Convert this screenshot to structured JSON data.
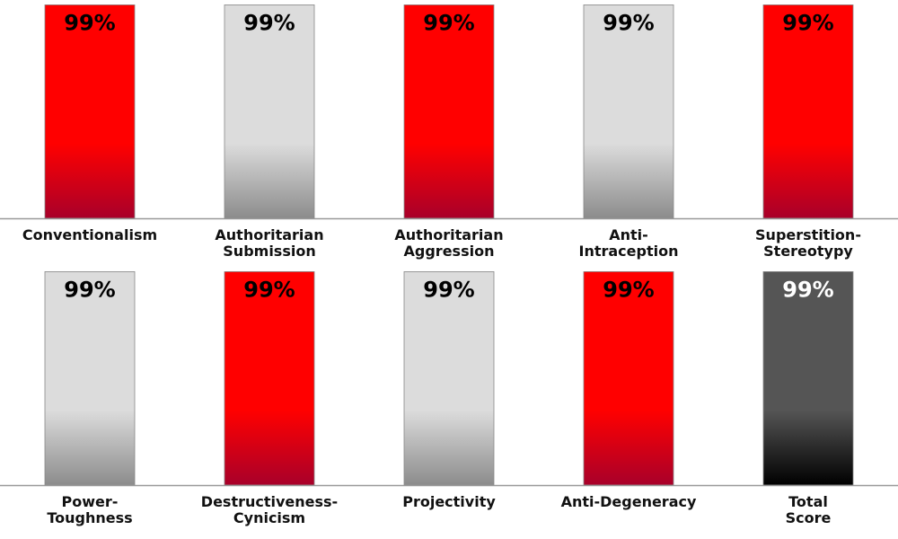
{
  "chart_data": {
    "type": "bar",
    "ylim": [
      0,
      100
    ],
    "grid": false,
    "rows": [
      {
        "bars": [
          {
            "label": [
              "Conventionalism"
            ],
            "value": 99,
            "value_label": "99%",
            "style": "red"
          },
          {
            "label": [
              "Authoritarian",
              "Submission"
            ],
            "value": 99,
            "value_label": "99%",
            "style": "grey"
          },
          {
            "label": [
              "Authoritarian",
              "Aggression"
            ],
            "value": 99,
            "value_label": "99%",
            "style": "red"
          },
          {
            "label": [
              "Anti-",
              "Intraception"
            ],
            "value": 99,
            "value_label": "99%",
            "style": "grey"
          },
          {
            "label": [
              "Superstition-",
              "Stereotypy"
            ],
            "value": 99,
            "value_label": "99%",
            "style": "red"
          }
        ]
      },
      {
        "bars": [
          {
            "label": [
              "Power-",
              "Toughness"
            ],
            "value": 99,
            "value_label": "99%",
            "style": "grey"
          },
          {
            "label": [
              "Destructiveness-",
              "Cynicism"
            ],
            "value": 99,
            "value_label": "99%",
            "style": "red"
          },
          {
            "label": [
              "Projectivity"
            ],
            "value": 99,
            "value_label": "99%",
            "style": "grey"
          },
          {
            "label": [
              "Anti-Degeneracy"
            ],
            "value": 99,
            "value_label": "99%",
            "style": "red"
          },
          {
            "label": [
              "Total",
              "Score"
            ],
            "value": 99,
            "value_label": "99%",
            "style": "dark"
          }
        ]
      }
    ]
  },
  "colors": {
    "red_top": "#ff0000",
    "red_bottom": "#a8002a",
    "grey_top": "#dcdcdc",
    "grey_bottom": "#8c8c8c",
    "dark_top": "#555555",
    "dark_bottom": "#000000",
    "axis_line": "#999999",
    "value_text_light": "#ffffff",
    "value_text_dark": "#000000"
  }
}
